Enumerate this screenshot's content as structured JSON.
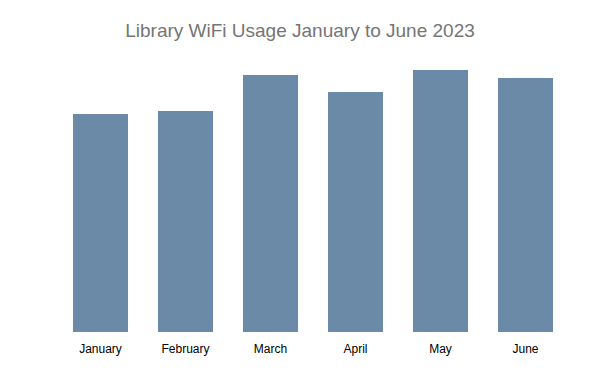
{
  "chart_data": {
    "type": "bar",
    "title": "Library WiFi Usage January to June 2023",
    "categories": [
      "January",
      "February",
      "March",
      "April",
      "May",
      "June"
    ],
    "values": [
      218,
      221,
      257,
      240,
      262,
      254
    ],
    "color": "#6a8aa8",
    "ylim": [
      0,
      272
    ],
    "grid": false,
    "tick_labels": "x"
  }
}
